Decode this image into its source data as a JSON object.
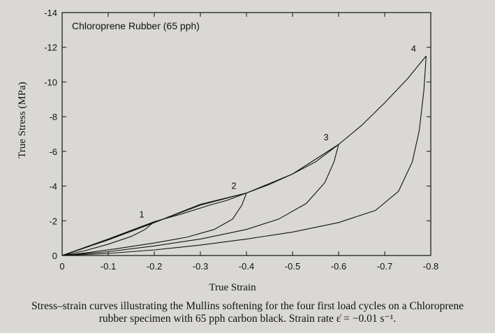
{
  "chart_data": {
    "type": "line",
    "title": "Chloroprene Rubber (65 pph)",
    "xlabel": "True Strain",
    "ylabel": "True Stress (MPa)",
    "xlim": [
      0,
      -0.8
    ],
    "ylim": [
      0,
      -14
    ],
    "xticks": [
      0,
      -0.1,
      -0.2,
      -0.3,
      -0.4,
      -0.5,
      -0.6,
      -0.7,
      -0.8
    ],
    "xtick_labels": [
      "0",
      "-0.1",
      "-0.2",
      "-0.3",
      "-0.4",
      "-0.5",
      "-0.6",
      "-0.7",
      "-0.8"
    ],
    "yticks": [
      0,
      -2,
      -4,
      -6,
      -8,
      -10,
      -12,
      -14
    ],
    "ytick_labels": [
      "0",
      "-2",
      "-4",
      "-6",
      "-8",
      "-10",
      "-12",
      "-14"
    ],
    "grid": false,
    "legend": "none",
    "series": [
      {
        "label": "1",
        "loading": [
          [
            0,
            0
          ],
          [
            -0.04,
            -0.38
          ],
          [
            -0.08,
            -0.76
          ],
          [
            -0.12,
            -1.12
          ],
          [
            -0.16,
            -1.5
          ],
          [
            -0.18,
            -1.72
          ],
          [
            -0.2,
            -1.95
          ]
        ],
        "unloading": [
          [
            -0.2,
            -1.95
          ],
          [
            -0.18,
            -1.5
          ],
          [
            -0.15,
            -1.1
          ],
          [
            -0.1,
            -0.65
          ],
          [
            -0.05,
            -0.28
          ],
          [
            0,
            0
          ]
        ]
      },
      {
        "label": "2",
        "loading": [
          [
            0,
            0
          ],
          [
            -0.1,
            -0.95
          ],
          [
            -0.2,
            -1.95
          ],
          [
            -0.26,
            -2.4
          ],
          [
            -0.32,
            -2.9
          ],
          [
            -0.36,
            -3.2
          ],
          [
            -0.4,
            -3.6
          ]
        ],
        "unloading": [
          [
            -0.4,
            -3.6
          ],
          [
            -0.39,
            -2.9
          ],
          [
            -0.37,
            -2.1
          ],
          [
            -0.33,
            -1.5
          ],
          [
            -0.27,
            -1.05
          ],
          [
            -0.2,
            -0.72
          ],
          [
            -0.12,
            -0.4
          ],
          [
            -0.05,
            -0.15
          ],
          [
            0,
            0
          ]
        ]
      },
      {
        "label": "3",
        "loading": [
          [
            0,
            0
          ],
          [
            -0.1,
            -0.9
          ],
          [
            -0.2,
            -1.9
          ],
          [
            -0.3,
            -2.95
          ],
          [
            -0.4,
            -3.6
          ],
          [
            -0.45,
            -4.1
          ],
          [
            -0.5,
            -4.7
          ],
          [
            -0.55,
            -5.4
          ],
          [
            -0.6,
            -6.4
          ]
        ],
        "unloading": [
          [
            -0.6,
            -6.4
          ],
          [
            -0.59,
            -5.4
          ],
          [
            -0.57,
            -4.2
          ],
          [
            -0.53,
            -3.0
          ],
          [
            -0.47,
            -2.1
          ],
          [
            -0.4,
            -1.5
          ],
          [
            -0.3,
            -0.95
          ],
          [
            -0.2,
            -0.55
          ],
          [
            -0.1,
            -0.22
          ],
          [
            0,
            0
          ]
        ]
      },
      {
        "label": "4",
        "loading": [
          [
            0,
            0
          ],
          [
            -0.1,
            -0.9
          ],
          [
            -0.2,
            -1.9
          ],
          [
            -0.3,
            -2.9
          ],
          [
            -0.4,
            -3.6
          ],
          [
            -0.5,
            -4.7
          ],
          [
            -0.6,
            -6.4
          ],
          [
            -0.65,
            -7.5
          ],
          [
            -0.7,
            -8.8
          ],
          [
            -0.75,
            -10.2
          ],
          [
            -0.79,
            -11.5
          ]
        ],
        "unloading": [
          [
            -0.79,
            -11.5
          ],
          [
            -0.785,
            -9.5
          ],
          [
            -0.775,
            -7.2
          ],
          [
            -0.76,
            -5.4
          ],
          [
            -0.73,
            -3.7
          ],
          [
            -0.68,
            -2.6
          ],
          [
            -0.6,
            -1.9
          ],
          [
            -0.5,
            -1.35
          ],
          [
            -0.4,
            -0.95
          ],
          [
            -0.3,
            -0.6
          ],
          [
            -0.2,
            -0.32
          ],
          [
            -0.1,
            -0.12
          ],
          [
            0,
            0
          ]
        ]
      }
    ]
  },
  "caption": {
    "line1": "Stress–strain curves illustrating the Mullins softening for the four first load cycles on a Chloroprene",
    "line2": "rubber specimen with 65 pph carbon black. Strain rate ε̇ = −0.01 s⁻¹."
  }
}
